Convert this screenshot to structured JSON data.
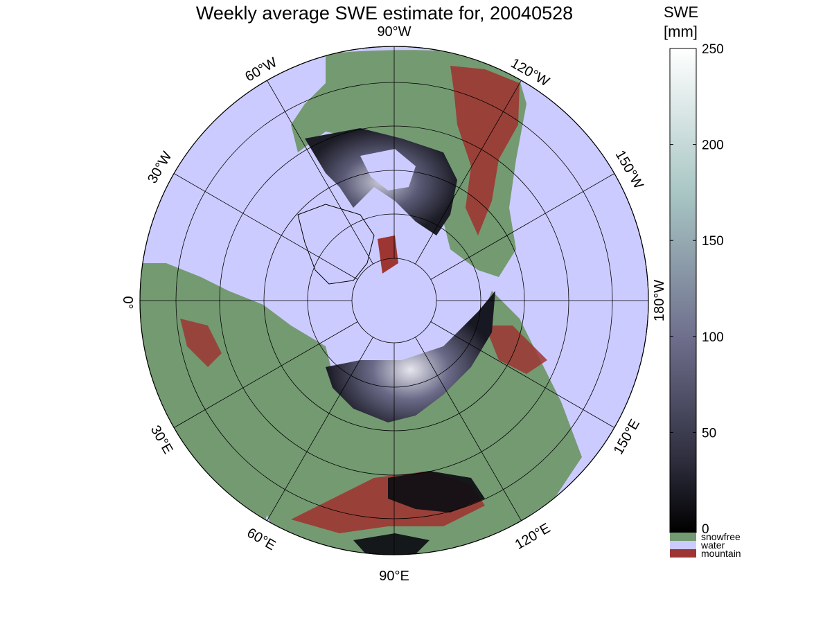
{
  "title": "Weekly average SWE estimate for, 20040528",
  "colorbar": {
    "title_line1": "SWE",
    "title_line2": "[mm]",
    "ticks": [
      "250",
      "200",
      "150",
      "100",
      "50",
      "0"
    ],
    "tick_values": [
      250,
      200,
      150,
      100,
      50,
      0
    ],
    "range": [
      0,
      250
    ],
    "gradient_top": "#ffffff",
    "gradient_mid": "#5e5e7e",
    "gradient_bottom": "#000000"
  },
  "categories": [
    {
      "label": "snowfree",
      "color": "#749a72"
    },
    {
      "label": "water",
      "color": "#cccbff"
    },
    {
      "label": "mountain",
      "color": "#9d3632"
    }
  ],
  "longitude_labels": [
    "90°W",
    "120°W",
    "150°W",
    "180°W",
    "150°E",
    "120°E",
    "90°E",
    "60°E",
    "30°E",
    "0°",
    "30°W",
    "60°W"
  ],
  "colors": {
    "ocean": "#cccbff",
    "land": "#749a72",
    "mountain": "#9d3632",
    "snow_dark": "#1a1a24",
    "snow_mid": "#4c4c68"
  }
}
